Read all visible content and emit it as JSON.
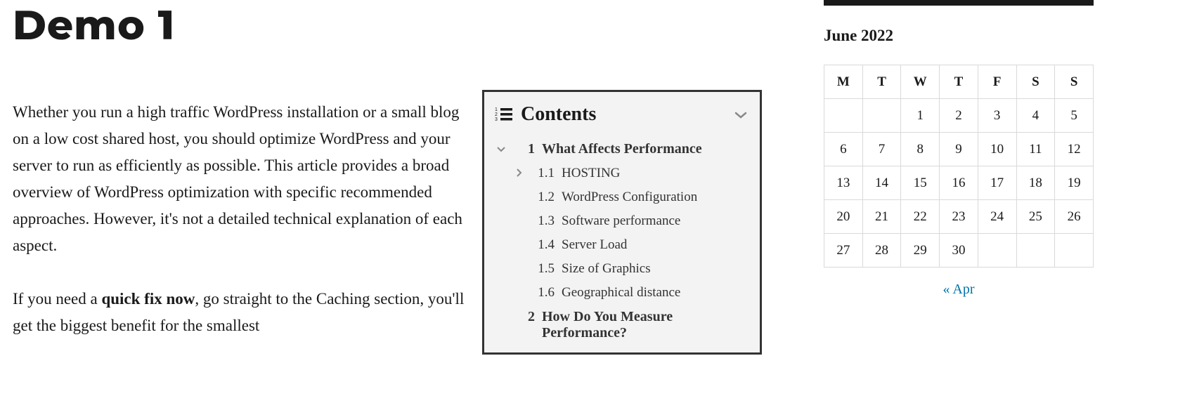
{
  "page": {
    "title": "Demo 1",
    "paragraphs": {
      "p1": "Whether you run a high traffic WordPress installation or a small blog on a low cost shared host, you should optimize WordPress and your server to run as efficiently as possible. This article provides a broad overview of WordPress optimization with specific recommended approaches. However, it's not a detailed technical explanation of each aspect.",
      "p2_pre": "If you need a ",
      "p2_bold": "quick fix now",
      "p2_post": ", go straight to the Caching section, you'll get the biggest benefit for the smallest"
    }
  },
  "toc": {
    "title": "Contents",
    "items": [
      {
        "level": 1,
        "num": "1",
        "label": "What Affects Performance",
        "caret": "down"
      },
      {
        "level": 2,
        "num": "1.1",
        "label": "HOSTING",
        "caret": "right"
      },
      {
        "level": 2,
        "num": "1.2",
        "label": "WordPress Configuration",
        "caret": ""
      },
      {
        "level": 2,
        "num": "1.3",
        "label": "Software performance",
        "caret": ""
      },
      {
        "level": 2,
        "num": "1.4",
        "label": "Server Load",
        "caret": ""
      },
      {
        "level": 2,
        "num": "1.5",
        "label": "Size of Graphics",
        "caret": ""
      },
      {
        "level": 2,
        "num": "1.6",
        "label": "Geographical distance",
        "caret": ""
      },
      {
        "level": 1,
        "num": "2",
        "label": "How Do You Measure Performance?",
        "caret": ""
      }
    ]
  },
  "calendar": {
    "title": "June 2022",
    "day_headers": [
      "M",
      "T",
      "W",
      "T",
      "F",
      "S",
      "S"
    ],
    "weeks": [
      [
        "",
        "",
        "1",
        "2",
        "3",
        "4",
        "5"
      ],
      [
        "6",
        "7",
        "8",
        "9",
        "10",
        "11",
        "12"
      ],
      [
        "13",
        "14",
        "15",
        "16",
        "17",
        "18",
        "19"
      ],
      [
        "20",
        "21",
        "22",
        "23",
        "24",
        "25",
        "26"
      ],
      [
        "27",
        "28",
        "29",
        "30",
        "",
        "",
        ""
      ]
    ],
    "prev_link": "« Apr"
  },
  "colors": {
    "text": "#1a1a1a",
    "link": "#0073aa",
    "toc_bg": "#f3f3f3",
    "toc_border": "#333333",
    "cal_border": "#d9d9d9",
    "caret": "#888888"
  }
}
